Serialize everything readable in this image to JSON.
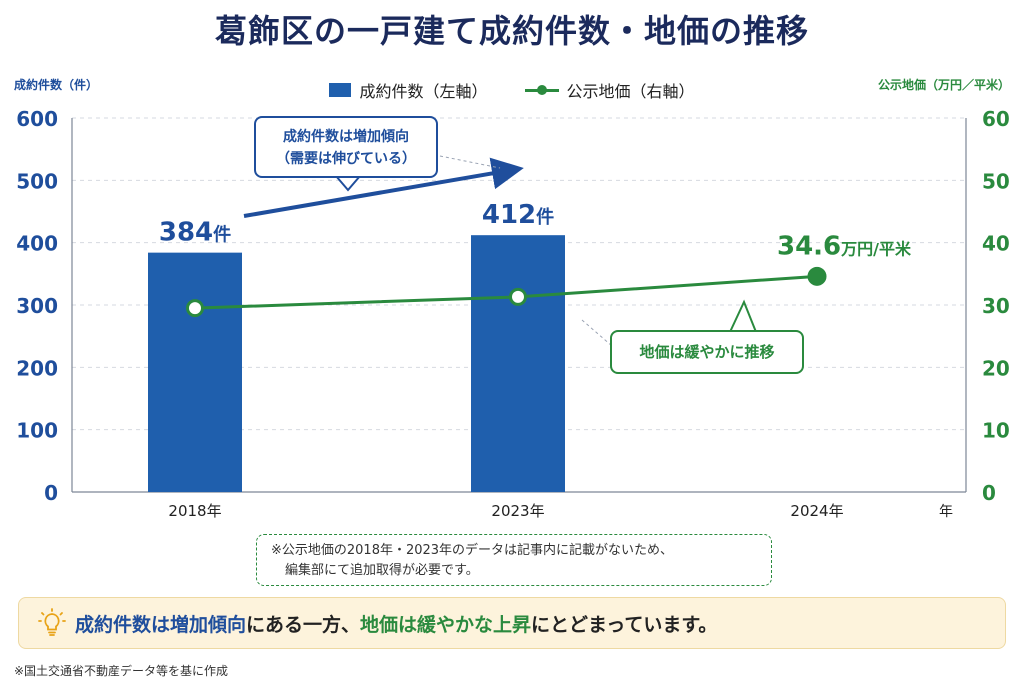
{
  "title": "葛飾区の一戸建て成約件数・地価の推移",
  "left_axis_label": "成約件数（件）",
  "right_axis_label": "公示地価（万円／平米）",
  "legend": {
    "bars": "成約件数（左軸）",
    "line": "公示地価（右軸）"
  },
  "x_axis_unit": "年",
  "colors": {
    "bar": "#1f5fad",
    "line": "#2a8a3e",
    "title": "#1b2a5c"
  },
  "chart_data": {
    "type": "bar",
    "categories": [
      "2018年",
      "2023年",
      "2024年"
    ],
    "series": [
      {
        "name": "成約件数（左軸）",
        "axis": "left",
        "type": "bar",
        "values": [
          384,
          412,
          null
        ]
      },
      {
        "name": "公示地価（右軸）",
        "axis": "right",
        "type": "line",
        "values": [
          29.5,
          31.3,
          34.6
        ]
      }
    ],
    "left_ylim": [
      0,
      600
    ],
    "left_ticks": [
      "0",
      "100",
      "200",
      "300",
      "400",
      "500",
      "600"
    ],
    "right_ylim": [
      0,
      60
    ],
    "right_ticks": [
      "0",
      "10",
      "20",
      "30",
      "40",
      "50",
      "60"
    ],
    "grid": true,
    "legend_position": "top-center",
    "data_labels": {
      "bar_2018": {
        "value": "384",
        "unit": "件"
      },
      "bar_2023": {
        "value": "412",
        "unit": "件"
      },
      "line_2024": {
        "value": "34.6",
        "unit": "万円/平米"
      }
    }
  },
  "callouts": {
    "bars_line1": "成約件数は増加傾向",
    "bars_line2": "（需要は伸びている）",
    "land": "地価は緩やかに推移"
  },
  "note": {
    "line1": "※公示地価の2018年・2023年のデータは記事内に記載がないため、",
    "line2": "編集部にて追加取得が必要です。"
  },
  "summary": {
    "part1": "成約件数は増加傾向",
    "part2": "にある一方、",
    "part3": "地価は緩やかな上昇",
    "part4": "にとどまっています。"
  },
  "source": "※国土交通省不動産データ等を基に作成"
}
